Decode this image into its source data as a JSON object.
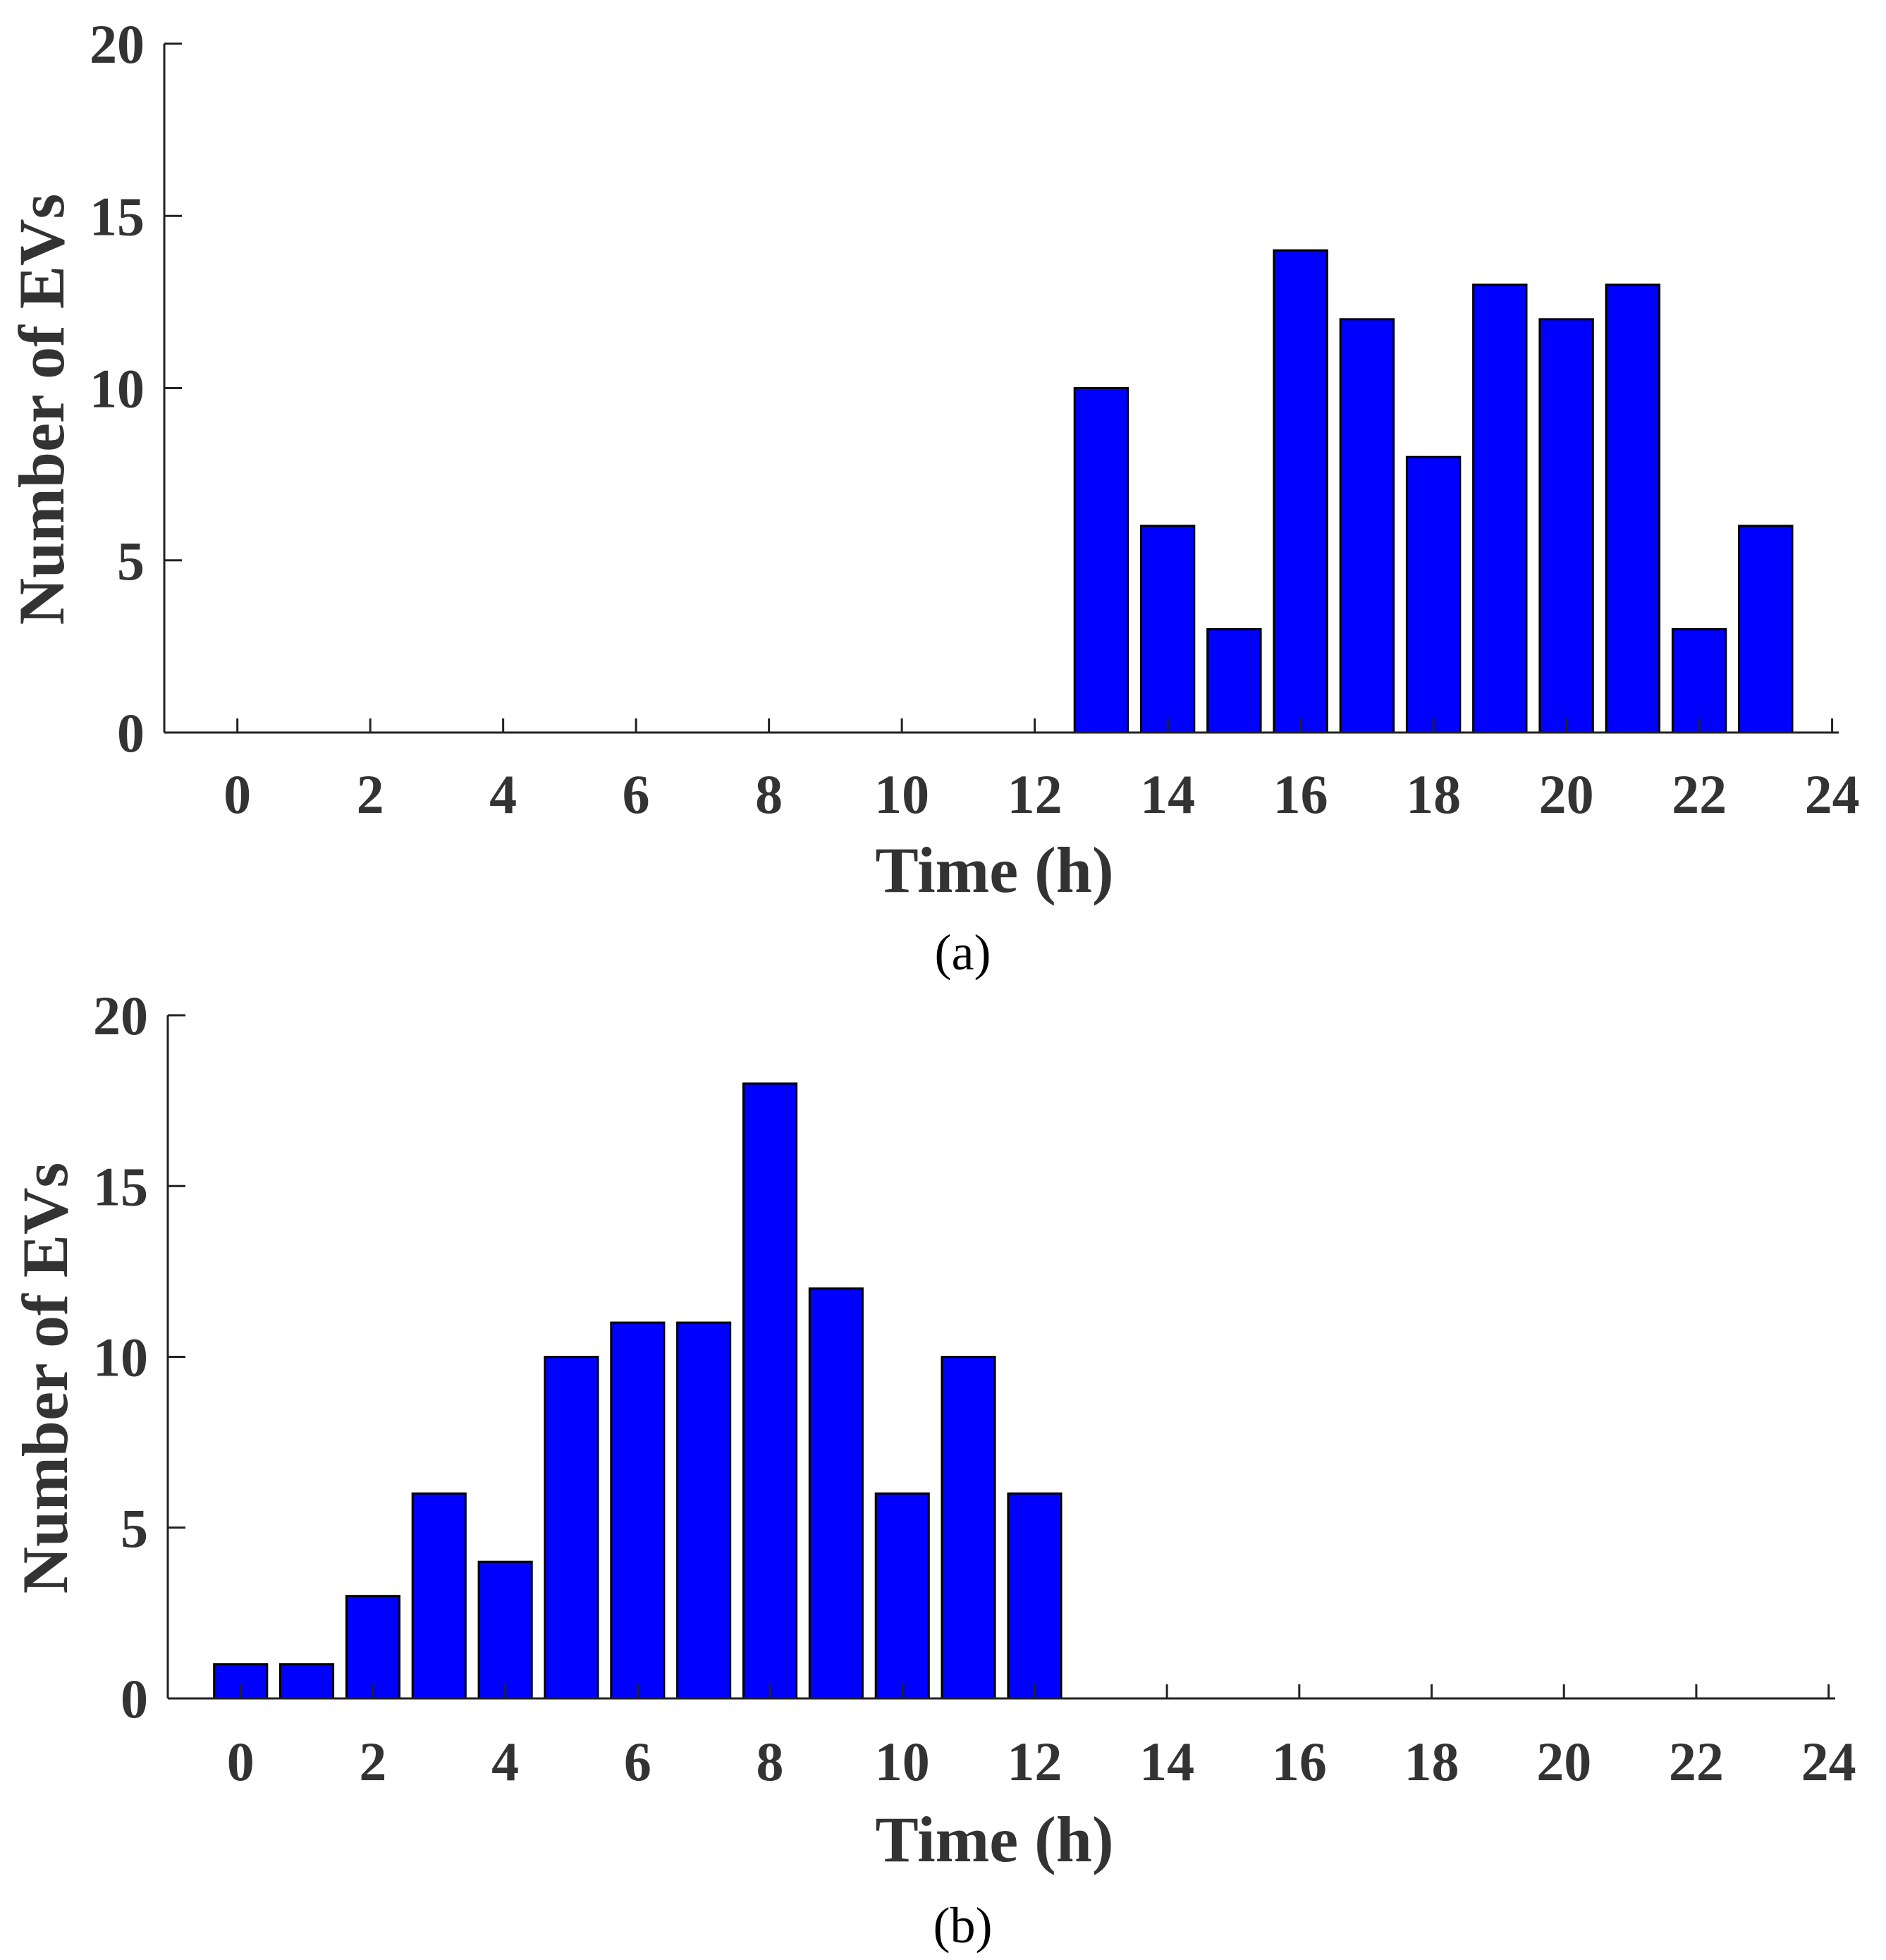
{
  "colors": {
    "bar": "#0000ff",
    "axis": "#222222",
    "text": "#333333"
  },
  "chart_data": [
    {
      "type": "bar",
      "caption": "(a)",
      "xlabel": "Time (h)",
      "ylabel": "Number of EVs",
      "xlim": [
        -1.1,
        24.1
      ],
      "ylim": [
        0,
        20
      ],
      "xticks": [
        0,
        2,
        4,
        6,
        8,
        10,
        12,
        14,
        16,
        18,
        20,
        22,
        24
      ],
      "yticks": [
        0,
        5,
        10,
        15,
        20
      ],
      "grid": false,
      "x": [
        13,
        14,
        15,
        16,
        17,
        18,
        19,
        20,
        21,
        22,
        23
      ],
      "values": [
        10,
        6,
        3,
        14,
        12,
        8,
        13,
        12,
        13,
        3,
        6
      ]
    },
    {
      "type": "bar",
      "caption": "(b)",
      "xlabel": "Time (h)",
      "ylabel": "Number of EVs",
      "xlim": [
        -1.1,
        24.1
      ],
      "ylim": [
        0,
        20
      ],
      "xticks": [
        0,
        2,
        4,
        6,
        8,
        10,
        12,
        14,
        16,
        18,
        20,
        22,
        24
      ],
      "yticks": [
        0,
        5,
        10,
        15,
        20
      ],
      "grid": false,
      "x": [
        0,
        1,
        2,
        3,
        4,
        5,
        6,
        7,
        8,
        9,
        10,
        11,
        12
      ],
      "values": [
        1,
        1,
        3,
        6,
        4,
        10,
        11,
        11,
        18,
        12,
        6,
        10,
        6
      ]
    }
  ]
}
